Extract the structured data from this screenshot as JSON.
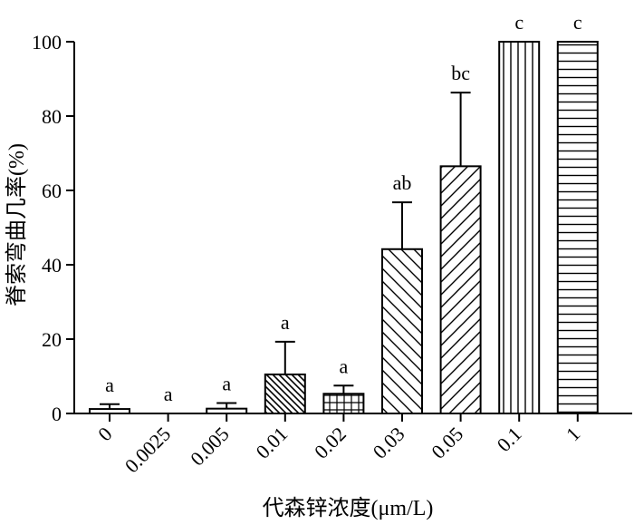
{
  "chart_data": {
    "type": "bar",
    "categories": [
      "0",
      "0.0025",
      "0.005",
      "0.01",
      "0.02",
      "0.03",
      "0.05",
      "0.1",
      "1"
    ],
    "values": [
      1.2,
      0,
      1.3,
      10.5,
      5.3,
      44.2,
      66.5,
      100,
      100
    ],
    "errors": [
      1.3,
      0,
      1.5,
      8.8,
      2.2,
      12.6,
      19.8,
      0,
      0
    ],
    "significance": [
      "a",
      "a",
      "a",
      "a",
      "a",
      "ab",
      "bc",
      "c",
      "c"
    ],
    "patterns": [
      "none",
      "none",
      "none",
      "hatch-back-dense",
      "grid",
      "hatch-back",
      "hatch-forward",
      "vertical",
      "horizontal"
    ],
    "title": "",
    "xlabel": "代森锌浓度(μm/L)",
    "ylabel": "脊索弯曲几率(%)",
    "ylim": [
      0,
      100
    ],
    "yticks": [
      0,
      20,
      40,
      60,
      80,
      100
    ],
    "grid": false,
    "legend": "none",
    "colors": {
      "stroke": "#000000",
      "fill": "#ffffff"
    }
  }
}
